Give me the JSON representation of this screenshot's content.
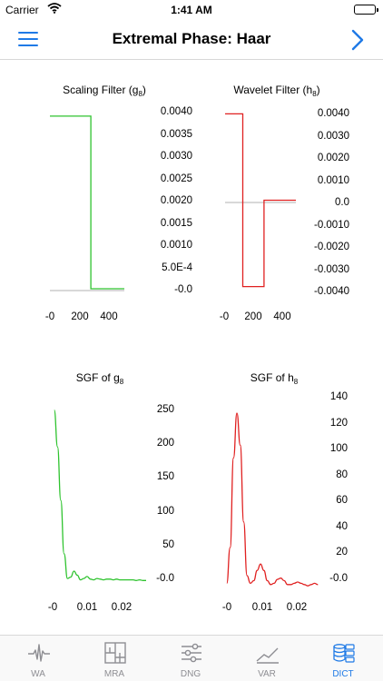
{
  "status_bar": {
    "carrier": "Carrier",
    "time": "1:41 AM"
  },
  "nav": {
    "title": "Extremal Phase: Haar"
  },
  "charts": {
    "scaling": {
      "title": "Scaling Filter (g",
      "sub": "8",
      "title_end": ")",
      "yticks": [
        "0.0040",
        "0.0035",
        "0.0030",
        "0.0025",
        "0.0020",
        "0.0015",
        "0.0010",
        "5.0E-4",
        "-0.0"
      ],
      "xticks": [
        "-0",
        "200",
        "400"
      ]
    },
    "wavelet": {
      "title": "Wavelet Filter (h",
      "sub": "8",
      "title_end": ")",
      "yticks": [
        "0.0040",
        "0.0030",
        "0.0020",
        "0.0010",
        "0.0",
        "-0.0010",
        "-0.0020",
        "-0.0030",
        "-0.0040"
      ],
      "xticks": [
        "-0",
        "200",
        "400"
      ]
    },
    "sgf_g": {
      "title": "SGF of g",
      "sub": "8",
      "yticks": [
        "250",
        "200",
        "150",
        "100",
        "50",
        "-0.0"
      ],
      "xticks": [
        "-0",
        "0.01",
        "0.02"
      ]
    },
    "sgf_h": {
      "title": "SGF of h",
      "sub": "8",
      "yticks": [
        "140",
        "120",
        "100",
        "80",
        "60",
        "40",
        "20",
        "-0.0"
      ],
      "xticks": [
        "-0",
        "0.01",
        "0.02"
      ]
    }
  },
  "chart_data": [
    {
      "type": "line",
      "title": "Scaling Filter (g8)",
      "color": "#2ec32e",
      "x": [
        0,
        100,
        100,
        220,
        220,
        400
      ],
      "y": [
        0.0039,
        0.0039,
        0.0039,
        0.0039,
        0.0,
        0.0
      ],
      "ylim": [
        0.0,
        0.004
      ],
      "xlim": [
        0,
        400
      ]
    },
    {
      "type": "line",
      "title": "Wavelet Filter (h8)",
      "color": "#e02020",
      "x": [
        0,
        100,
        100,
        220,
        220,
        400
      ],
      "y": [
        0.0039,
        0.0039,
        -0.0039,
        -0.0039,
        0.0,
        0.0
      ],
      "ylim": [
        -0.004,
        0.004
      ],
      "xlim": [
        0,
        400
      ]
    },
    {
      "type": "line",
      "title": "SGF of g8",
      "color": "#2ec32e",
      "x": [
        0,
        0.001,
        0.002,
        0.003,
        0.004,
        0.005,
        0.006,
        0.007,
        0.008,
        0.009,
        0.01,
        0.011,
        0.012,
        0.013,
        0.014,
        0.015,
        0.016,
        0.017,
        0.018,
        0.019,
        0.02,
        0.021,
        0.022,
        0.023,
        0.024,
        0.025,
        0.026,
        0.027,
        0.028
      ],
      "y": [
        255,
        200,
        120,
        40,
        3,
        5,
        14,
        8,
        1,
        3,
        6,
        2,
        1,
        3,
        2,
        1,
        2,
        2,
        1,
        2,
        1,
        1,
        1,
        1,
        1,
        0,
        1,
        0,
        0
      ],
      "ylim": [
        -5,
        260
      ],
      "xlim": [
        -0.0005,
        0.028
      ]
    },
    {
      "type": "line",
      "title": "SGF of h8",
      "color": "#e02020",
      "x": [
        0,
        0.001,
        0.002,
        0.003,
        0.004,
        0.005,
        0.006,
        0.007,
        0.008,
        0.009,
        0.01,
        0.011,
        0.012,
        0.013,
        0.014,
        0.015,
        0.016,
        0.017,
        0.018,
        0.019,
        0.02,
        0.021,
        0.022,
        0.023,
        0.024,
        0.025,
        0.026,
        0.027
      ],
      "y": [
        2,
        30,
        100,
        135,
        110,
        50,
        8,
        2,
        4,
        12,
        17,
        12,
        4,
        1,
        2,
        5,
        6,
        4,
        1,
        1,
        2,
        3,
        2,
        1,
        0,
        1,
        2,
        1
      ],
      "ylim": [
        -2,
        140
      ],
      "xlim": [
        -0.0005,
        0.028
      ]
    }
  ],
  "tabs": [
    {
      "label": "WA",
      "icon": "wave-icon"
    },
    {
      "label": "MRA",
      "icon": "mra-icon"
    },
    {
      "label": "DNG",
      "icon": "sliders-icon"
    },
    {
      "label": "VAR",
      "icon": "trend-icon"
    },
    {
      "label": "DICT",
      "icon": "dictionary-icon",
      "active": true
    }
  ],
  "colors": {
    "accent": "#1f7ae6",
    "green": "#2ec32e",
    "red": "#e02020"
  }
}
